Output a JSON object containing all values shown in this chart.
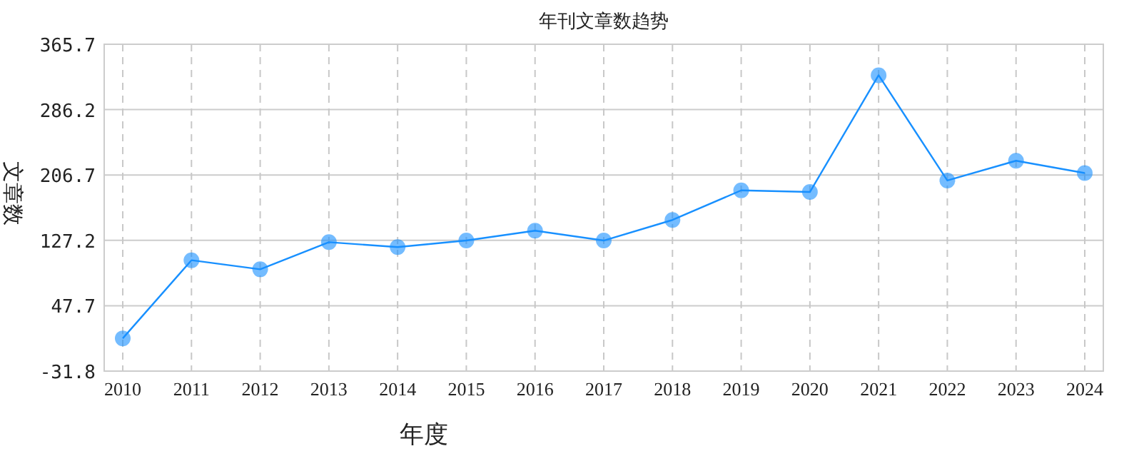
{
  "chart_data": {
    "type": "line",
    "title": "年刊文章数趋势",
    "xlabel": "年度",
    "ylabel": "文章数",
    "categories": [
      "2010",
      "2011",
      "2012",
      "2013",
      "2014",
      "2015",
      "2016",
      "2017",
      "2018",
      "2019",
      "2020",
      "2021",
      "2022",
      "2023",
      "2024"
    ],
    "series": [
      {
        "color": "#1890ff",
        "values": [
          8,
          103,
          92,
          125,
          119,
          127,
          139,
          127,
          152,
          188,
          186,
          328,
          200,
          224,
          209
        ]
      }
    ],
    "ylim": [
      -31.8,
      365.7
    ],
    "yticks": [
      -31.8,
      47.7,
      127.2,
      206.7,
      286.2,
      365.7
    ],
    "grid": true,
    "marker": "circle",
    "line_style": "solid"
  }
}
